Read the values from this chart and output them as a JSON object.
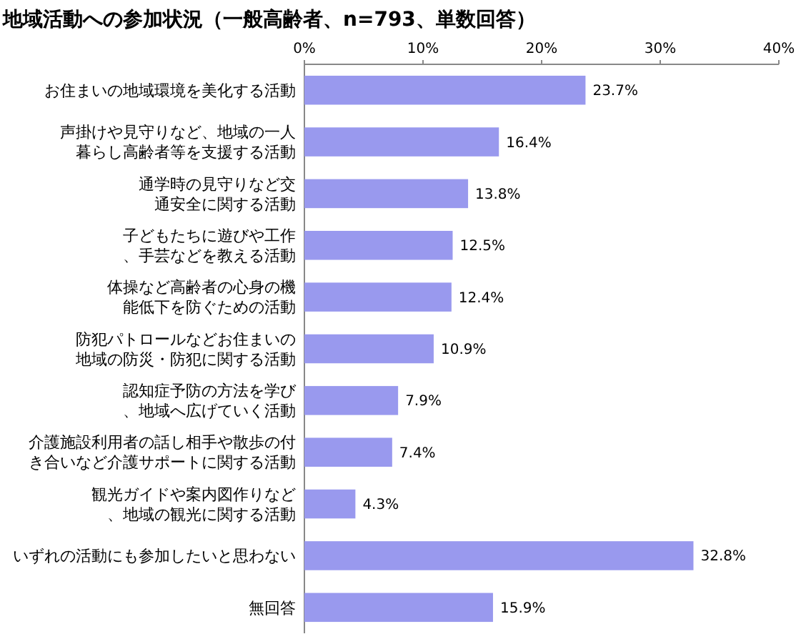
{
  "chart_data": {
    "type": "bar",
    "orientation": "horizontal",
    "title": "地域活動への参加状況（一般高齢者、n=793、単数回答）",
    "categories": [
      "お住まいの地域環境を美化する活動",
      "声掛けや見守りなど、地域の一人暮らし高齢者等を支援する活動",
      "通学時の見守りなど交通安全に関する活動",
      "子どもたちに遊びや工作、手芸などを教える活動",
      "体操など高齢者の心身の機能低下を防ぐための活動",
      "防犯パトロールなどお住まいの地域の防災・防犯に関する活動",
      "認知症予防の方法を学び、地域へ広げていく活動",
      "介護施設利用者の話し相手や散歩の付き合いなど介護サポートに関する活動",
      "観光ガイドや案内図作りなど、地域の観光に関する活動",
      "いずれの活動にも参加したいと思わない",
      "無回答"
    ],
    "values": [
      23.7,
      16.4,
      13.8,
      12.5,
      12.4,
      10.9,
      7.9,
      7.4,
      4.3,
      32.8,
      15.9
    ],
    "value_labels": [
      "23.7%",
      "16.4%",
      "13.8%",
      "12.5%",
      "12.4%",
      "10.9%",
      "7.9%",
      "7.4%",
      "4.3%",
      "32.8%",
      "15.9%"
    ],
    "color": "#9999ee",
    "xlim": [
      0,
      40
    ],
    "xticks": [
      {
        "value": 0,
        "label": "0%"
      },
      {
        "value": 10,
        "label": "10%"
      },
      {
        "value": 20,
        "label": "20%"
      },
      {
        "value": 30,
        "label": "30%"
      },
      {
        "value": 40,
        "label": "40%"
      }
    ],
    "grid": false
  }
}
